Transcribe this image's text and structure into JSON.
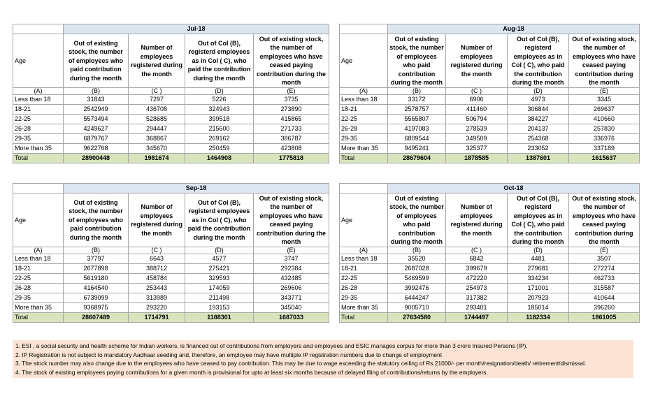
{
  "tables": [
    {
      "title": "Jul-18",
      "headers": [
        "Age",
        "Out of existing stock, the number of employees who paid contribution during the month",
        "Number of employees registered during the month",
        "Out of Col (B), registerd employees as in Col ( C), who paid the contribution during the month",
        "Out of existing stock, the number of employees who have ceased paying contribution during the month"
      ],
      "letters": [
        "(A)",
        "(B)",
        "(C )",
        "(D)",
        "(E)"
      ],
      "rows": [
        [
          "Less than 18",
          31843,
          7297,
          5226,
          3735
        ],
        [
          "18-21",
          2542949,
          436708,
          324943,
          273890
        ],
        [
          "22-25",
          5573494,
          528685,
          399518,
          415865
        ],
        [
          "26-28",
          4249627,
          294447,
          215600,
          271733
        ],
        [
          "29-35",
          6879767,
          368867,
          269162,
          386787
        ],
        [
          "More than 35",
          9622768,
          345670,
          250459,
          423808
        ]
      ],
      "total": [
        "Total",
        28900448,
        1981674,
        1464908,
        1775818
      ]
    },
    {
      "title": "Aug-18",
      "headers": [
        "Age",
        "Out of existing stock, the number of employees who paid contribution during the month",
        "Number of employees registered during the month",
        "Out of Col (B), registerd employees as in Col ( C), who paid the contribution during the month",
        "Out of existing stock, the number of employees who have ceased paying contribution during the month"
      ],
      "letters": [
        "(A)",
        "(B)",
        "(C )",
        "(D)",
        "(E)"
      ],
      "rows": [
        [
          "Less than 18",
          33172,
          6906,
          4973,
          3345
        ],
        [
          "18-21",
          2578757,
          411460,
          306844,
          269637
        ],
        [
          "22-25",
          5565807,
          506794,
          384227,
          410660
        ],
        [
          "26-28",
          4197083,
          278539,
          204137,
          257830
        ],
        [
          "29-35",
          6809544,
          349509,
          254368,
          336976
        ],
        [
          "More than 35",
          9495241,
          325377,
          233052,
          337189
        ]
      ],
      "total": [
        "Total",
        28679604,
        1878585,
        1387601,
        1615637
      ]
    },
    {
      "title": "Sep-18",
      "headers": [
        "Age",
        "Out of existing stock, the number of employees who paid contribution during the month",
        "Number of employees registered during the month",
        "Out of Col (B), registerd employees as in Col ( C), who paid the contribution during the month",
        "Out of existing stock, the number of employees who have ceased paying contribution during the month"
      ],
      "letters": [
        "(A)",
        "(B)",
        "(C )",
        "(D)",
        "(E)"
      ],
      "rows": [
        [
          "Less than 18",
          37797,
          6643,
          4577,
          3747
        ],
        [
          "18-21",
          2677898,
          388712,
          275421,
          292384
        ],
        [
          "22-25",
          5619180,
          458784,
          329593,
          432485
        ],
        [
          "26-28",
          4164540,
          253443,
          174059,
          269606
        ],
        [
          "29-35",
          6739099,
          313989,
          211498,
          343771
        ],
        [
          "More than 35",
          9368975,
          293220,
          193153,
          345040
        ]
      ],
      "total": [
        "Total",
        28607489,
        1714791,
        1188301,
        1687033
      ]
    },
    {
      "title": "Oct-18",
      "headers": [
        "Age",
        "Out of existing stock, the number of employees who paid contribution during the month",
        "Number of employees registered during the month",
        "Out of Col (B), registerd employees as in Col ( C), who paid the contribution during the month",
        "Out of existing stock, the number of employees who have ceased paying contribution during the month"
      ],
      "letters": [
        "(A)",
        "(B)",
        "(C )",
        "(D)",
        "(E)"
      ],
      "rows": [
        [
          "Less than 18",
          35520,
          6842,
          4481,
          3507
        ],
        [
          "18-21",
          2687028,
          399679,
          279681,
          272274
        ],
        [
          "22-25",
          5469599,
          472220,
          334234,
          462733
        ],
        [
          "26-28",
          3992476,
          254973,
          171001,
          315587
        ],
        [
          "29-35",
          6444247,
          317382,
          207923,
          410644
        ],
        [
          "More than 35",
          9005710,
          293401,
          185014,
          396260
        ]
      ],
      "total": [
        "Total",
        27634580,
        1744497,
        1182334,
        1861005
      ]
    }
  ],
  "notes": [
    "1. ESI , a social security and health scheme for Indian workers, is financed out of contributions from employers and employees and ESIC manages corpus for more than 3 crore Insured Persons (IP).",
    "2. IP Registration is not subject to mandatory Aadhaar seeding and, therefore, an employee may have multiple IP registration numbers due to change of employment",
    "3. The stock number may also change due to the employees who have ceased to pay contribution. This may be due to wage exceeding the statutory ceiling of Rs.21000/- per month/resignation/death/ retirement/dismissal.",
    "4. The stock of existing employees paying contributions for a given month is provisional for upto at least six months because of delayed filing of contributions/returns by the employers."
  ]
}
